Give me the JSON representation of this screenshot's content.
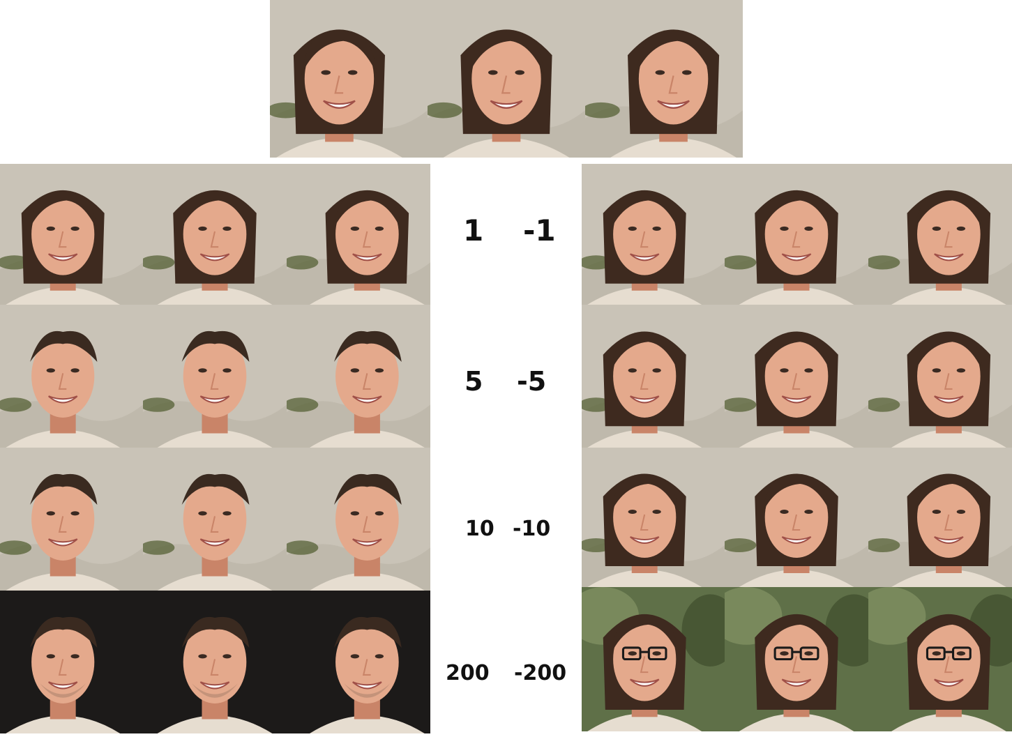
{
  "top_row": {
    "faces": [
      {
        "subject": "woman",
        "view": "left",
        "bg": "light"
      },
      {
        "subject": "woman",
        "view": "front",
        "bg": "light"
      },
      {
        "subject": "woman",
        "view": "right",
        "bg": "light"
      }
    ]
  },
  "rows": [
    {
      "label_pos": "1",
      "label_neg": "-1",
      "left": {
        "subject": "woman",
        "bg": "light",
        "glasses": false
      },
      "right": {
        "subject": "woman",
        "bg": "light",
        "glasses": false
      }
    },
    {
      "label_pos": "5",
      "label_neg": "-5",
      "left": {
        "subject": "man",
        "bg": "light",
        "glasses": false
      },
      "right": {
        "subject": "woman",
        "bg": "light",
        "glasses": false
      }
    },
    {
      "label_pos": "10",
      "label_neg": "-10",
      "left": {
        "subject": "man",
        "bg": "light",
        "glasses": false
      },
      "right": {
        "subject": "woman",
        "bg": "light",
        "glasses": false
      }
    },
    {
      "label_pos": "200",
      "label_neg": "-200",
      "left": {
        "subject": "man",
        "bg": "dark",
        "glasses": false
      },
      "right": {
        "subject": "woman",
        "bg": "green",
        "glasses": true
      }
    }
  ],
  "colors": {
    "skin": "#e4a98c",
    "skin_shadow": "#c98468",
    "hair_woman": "#3e2a1f",
    "hair_man": "#3a2a20",
    "bg_light": "#c9c3b7",
    "bg_dark": "#1c1a19",
    "bg_green": "#5f7048",
    "shirt": "#e6ddd0",
    "label": "#111111"
  }
}
